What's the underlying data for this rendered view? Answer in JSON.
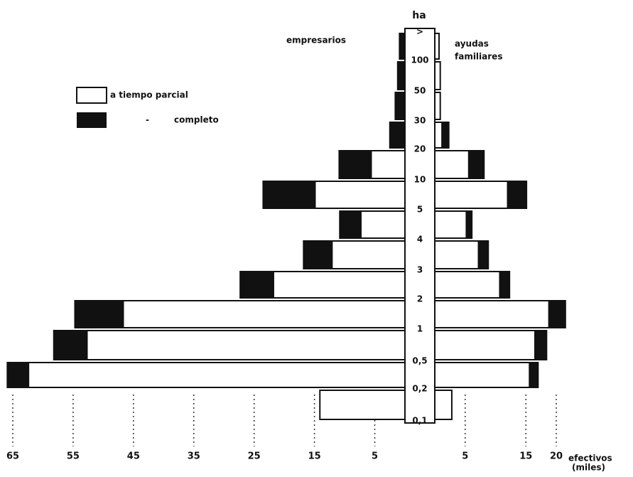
{
  "chart_data": {
    "type": "pyramid",
    "center_title": "ha",
    "size_labels": [
      "0,1",
      "0,2",
      "0,5",
      "1",
      "2",
      "3",
      "4",
      "5",
      "10",
      "20",
      "30",
      "50",
      "100",
      ">"
    ],
    "left": {
      "title": "empresarios",
      "xlim": [
        0,
        65
      ],
      "xticks": [
        65,
        55,
        45,
        35,
        25,
        15,
        5
      ],
      "series": [
        {
          "name": "a tiempo parcial",
          "color": "#ffffff",
          "values": [
            14.1,
            62.4,
            52.7,
            46.7,
            21.8,
            12.1,
            7.3,
            14.9,
            5.6,
            0,
            0,
            0,
            0
          ]
        },
        {
          "name": "completo",
          "color": "#111111",
          "values": [
            0,
            3.5,
            5.5,
            8,
            5.5,
            4.7,
            3.5,
            8.6,
            5.3,
            2.5,
            1.6,
            1.2,
            0.9
          ]
        }
      ]
    },
    "right": {
      "title": [
        "ayudas",
        "familiares"
      ],
      "xlim": [
        0,
        20
      ],
      "xticks": [
        5,
        15,
        20
      ],
      "series": [
        {
          "name": "a tiempo parcial",
          "color": "#ffffff",
          "values": [
            2.8,
            15.6,
            16.5,
            18.8,
            10.7,
            7.2,
            5.2,
            12,
            5.6,
            1.2,
            0.9,
            0.9,
            0.7
          ]
        },
        {
          "name": "completo",
          "color": "#111111",
          "values": [
            0,
            1.4,
            1.9,
            2.7,
            1.6,
            1.6,
            0.9,
            3.1,
            2.5,
            1.1,
            0,
            0,
            0
          ]
        }
      ]
    },
    "legend_ditto": "-",
    "xlabel": [
      "efectivos",
      "(miles)"
    ]
  }
}
